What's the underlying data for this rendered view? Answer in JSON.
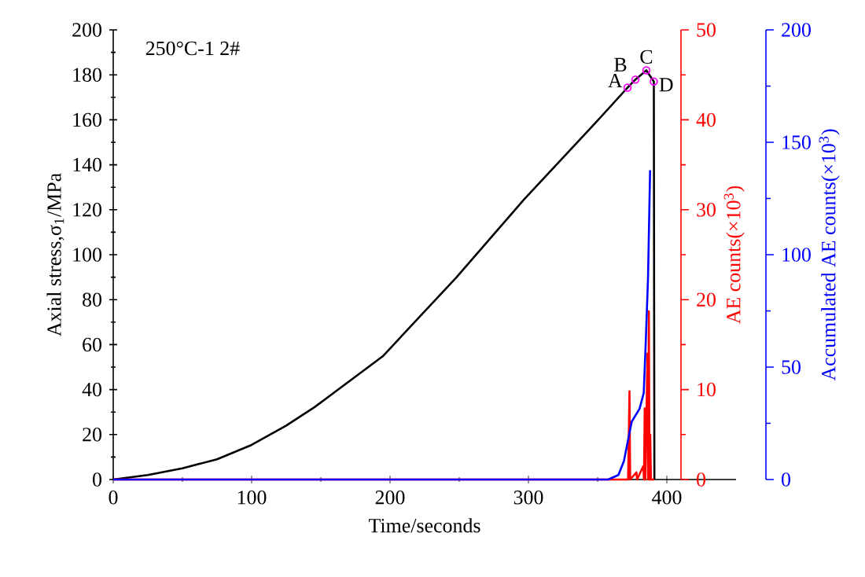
{
  "chart_data": {
    "type": "line",
    "title": "250°C-1  2#",
    "xlabel": "Time/seconds",
    "ylabel": "Axial stress,σ$_{1}$/MPa",
    "y2label": "AE counts(×10$^{3}$)",
    "y3label": "Accumulated AE counts(×10$^{3}$)",
    "xlim": [
      0,
      450
    ],
    "xticks": [
      0,
      100,
      200,
      300,
      400
    ],
    "ylim": [
      0,
      200
    ],
    "yticks": [
      0,
      20,
      40,
      60,
      80,
      100,
      120,
      140,
      160,
      180,
      200
    ],
    "y2lim": [
      0,
      50
    ],
    "y2ticks": [
      0,
      10,
      20,
      30,
      40,
      50
    ],
    "y3lim": [
      0,
      200
    ],
    "y3ticks": [
      0,
      50,
      100,
      150,
      200
    ],
    "series": [
      {
        "color": "#000000",
        "x": [
          0,
          25,
          50,
          75,
          100,
          125,
          145.5,
          194.7,
          247.7,
          297,
          346,
          371.6,
          377.3,
          385.2,
          390.6,
          391
        ],
        "values": [
          0,
          2,
          5,
          9,
          15.4,
          24,
          32.2,
          54.8,
          89.7,
          124.7,
          157,
          174.3,
          177.9,
          182,
          177,
          0
        ]
      },
      {
        "axis": "y2",
        "color": "#ff0000",
        "x": [
          0,
          372,
          373,
          373.5,
          378,
          378.5,
          383,
          383.5,
          384,
          384.5,
          386,
          386.5,
          387,
          387.5,
          388,
          388.5,
          391
        ],
        "values": [
          0,
          0,
          9.8,
          0,
          0.8,
          0,
          1.5,
          0,
          7.9,
          0,
          14,
          0,
          18.7,
          0,
          5,
          0,
          0
        ]
      },
      {
        "axis": "y3",
        "color": "#0000ff",
        "x": [
          0,
          357.6,
          365,
          369,
          372.7,
          374.6,
          380.3,
          383.3,
          384.8,
          386.4,
          387.9
        ],
        "values": [
          0,
          0,
          2,
          8.2,
          19.8,
          25.7,
          31.5,
          38.5,
          61.7,
          89.7,
          137.6
        ]
      },
      {
        "type": "scatter",
        "marker": "circle",
        "color": "#ff00ff",
        "x": [
          371.6,
          377.3,
          385.2,
          390.6
        ],
        "values": [
          174.3,
          177.9,
          182,
          177
        ]
      }
    ],
    "annotations": [
      {
        "text": "A",
        "x": 371.6,
        "y": 174.3
      },
      {
        "text": "B",
        "x": 377.3,
        "y": 177.9
      },
      {
        "text": "C",
        "x": 385.2,
        "y": 182
      },
      {
        "text": "D",
        "x": 390.6,
        "y": 177
      }
    ]
  }
}
